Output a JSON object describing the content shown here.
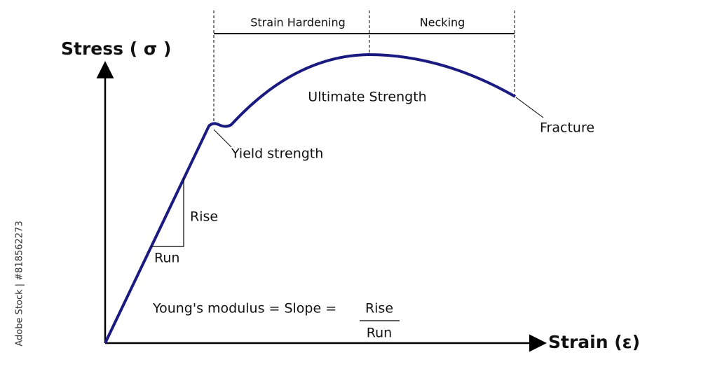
{
  "diagram": {
    "y_axis_label": "Stress ( σ )",
    "x_axis_label": "Strain (ε)",
    "regions": [
      "Strain Hardening",
      "Necking"
    ],
    "points": {
      "ultimate": "Ultimate Strength",
      "fracture": "Fracture",
      "yield": "Yield strength"
    },
    "triangle": {
      "rise": "Rise",
      "run": "Run"
    },
    "formula": {
      "lhs": "Young's modulus = Slope =",
      "numerator": "Rise",
      "denominator": "Run"
    },
    "watermark": "Adobe Stock | #818562273"
  }
}
